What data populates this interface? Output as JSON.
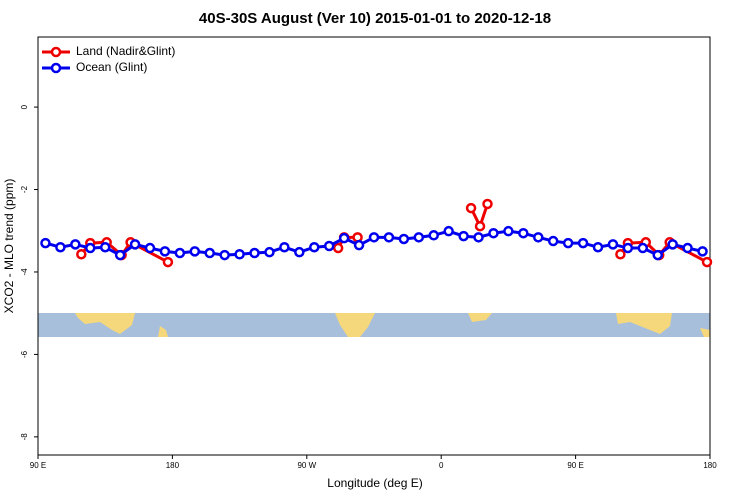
{
  "chart_data": {
    "type": "line",
    "title": "40S-30S August (Ver 10)   2015-01-01 to 2020-12-18",
    "xlabel": "Longitude (deg E)",
    "ylabel": "XCO2 - MLO trend (ppm)",
    "xlim": [
      90,
      540
    ],
    "ylim": [
      -8.44,
      1.7
    ],
    "xticks": [
      {
        "value": 90,
        "label": "90 E"
      },
      180,
      {
        "value": 270,
        "label": "90 W"
      },
      {
        "value": 360,
        "label": "0"
      },
      {
        "value": 450,
        "label": "90 E"
      },
      {
        "value": 540,
        "label": "180"
      }
    ],
    "yticks": [
      0,
      -2,
      -4,
      -6,
      -8
    ],
    "legend": "top-left",
    "series": [
      {
        "name": "Land (Nadir&Glint)",
        "color": "#ee0000",
        "x": [
          119,
          125,
          136,
          146,
          152,
          177,
          null,
          291,
          295,
          304,
          null,
          380,
          386,
          391,
          null,
          480,
          485,
          497,
          506,
          513,
          538
        ],
        "values": [
          -3.57,
          -3.3,
          -3.28,
          -3.59,
          -3.28,
          -3.76,
          null,
          -3.42,
          -3.16,
          -3.16,
          null,
          -2.45,
          -2.89,
          -2.35,
          null,
          -3.57,
          -3.3,
          -3.28,
          -3.59,
          -3.28,
          -3.76
        ]
      },
      {
        "name": "Ocean (Glint)",
        "color": "#0000ee",
        "x": [
          95,
          105,
          115,
          125,
          135,
          145,
          155,
          165,
          175,
          185,
          195,
          205,
          215,
          225,
          235,
          245,
          255,
          265,
          275,
          285,
          295,
          305,
          315,
          325,
          335,
          345,
          355,
          365,
          375,
          385,
          395,
          405,
          415,
          425,
          435,
          445,
          455,
          465,
          475,
          485,
          495,
          505,
          515,
          525,
          535
        ],
        "values": [
          -3.3,
          -3.4,
          -3.33,
          -3.42,
          -3.4,
          -3.59,
          -3.33,
          -3.42,
          -3.5,
          -3.54,
          -3.5,
          -3.54,
          -3.59,
          -3.57,
          -3.54,
          -3.52,
          -3.4,
          -3.52,
          -3.4,
          -3.37,
          -3.18,
          -3.35,
          -3.16,
          -3.16,
          -3.2,
          -3.16,
          -3.11,
          -3.01,
          -3.13,
          -3.16,
          -3.06,
          -3.01,
          -3.06,
          -3.16,
          -3.25,
          -3.3,
          -3.3,
          -3.4,
          -3.33,
          -3.42,
          -3.42,
          -3.59,
          -3.33,
          -3.42,
          -3.5
        ]
      }
    ]
  }
}
